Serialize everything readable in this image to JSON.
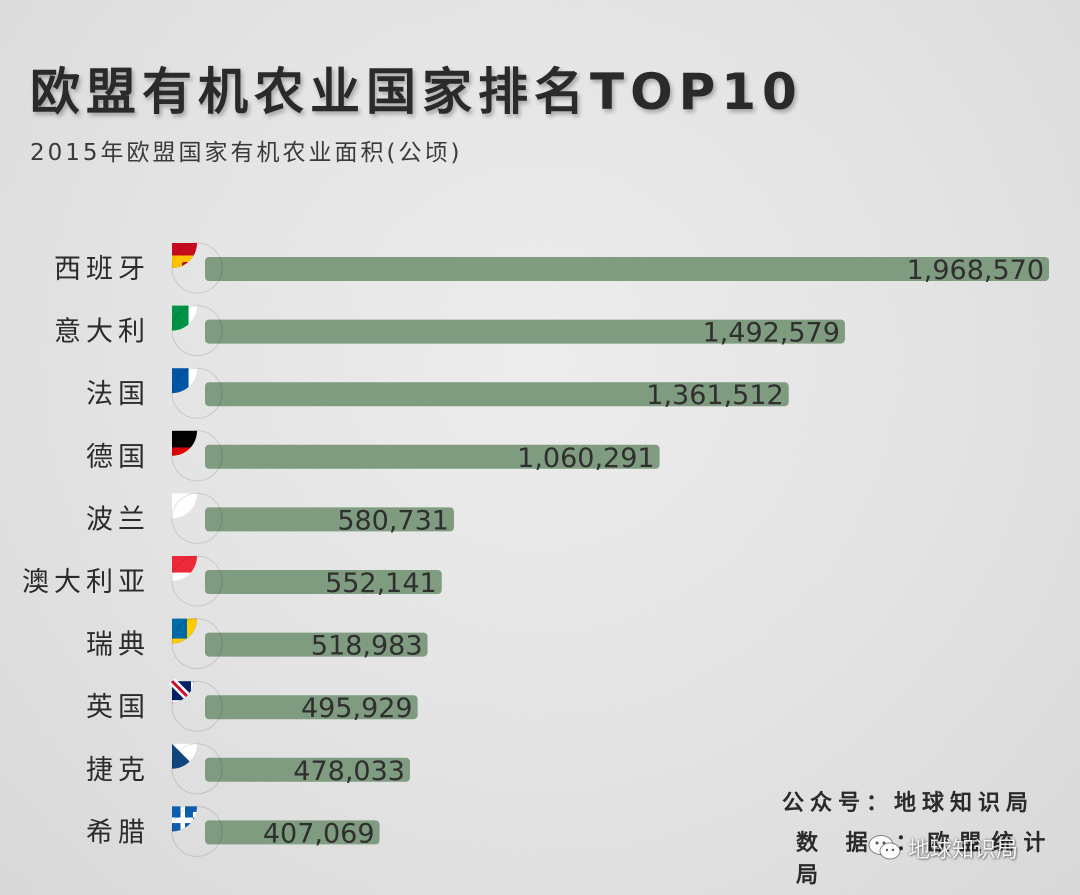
{
  "header": {
    "title": "欧盟有机农业国家排名TOP10",
    "subtitle": "2015年欧盟国家有机农业面积(公顷)"
  },
  "chart_data": {
    "type": "bar",
    "orientation": "horizontal",
    "title": "欧盟有机农业国家排名TOP10",
    "subtitle": "2015年欧盟国家有机农业面积(公顷)",
    "categories": [
      "西班牙",
      "意大利",
      "法国",
      "德国",
      "波兰",
      "澳大利亚",
      "瑞典",
      "英国",
      "捷克",
      "希腊"
    ],
    "values": [
      1968570,
      1492579,
      1361512,
      1060291,
      580731,
      552141,
      518983,
      495929,
      478033,
      407069
    ],
    "value_labels": [
      "1,968,570",
      "1,492,579",
      "1,361,512",
      "1,060,291",
      "580,731",
      "552,141",
      "518,983",
      "495,929",
      "478,033",
      "407,069"
    ],
    "flags": [
      "spain-flag-icon",
      "italy-flag-icon",
      "france-flag-icon",
      "germany-flag-icon",
      "poland-flag-icon",
      "austria-flag-icon",
      "sweden-flag-icon",
      "uk-flag-icon",
      "czech-flag-icon",
      "greece-flag-icon"
    ],
    "bar_color": "#7f9b80",
    "grid": false,
    "legend": "none"
  },
  "footer": {
    "account_line": "公众号：地球知识局",
    "source_line": "数 据 ：欧盟统计局",
    "watermark_text": "地球知识局"
  }
}
